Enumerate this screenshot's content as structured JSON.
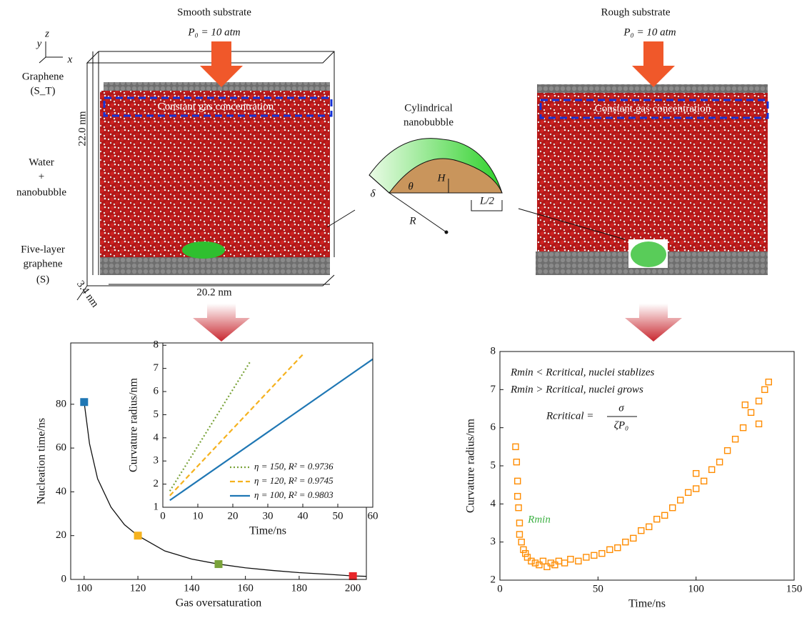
{
  "diagram": {
    "left_title": "Smooth substrate",
    "left_pressure": "P₀ = 10 atm",
    "right_title": "Rough substrate",
    "right_pressure": "P₀ = 10 atm",
    "axis_y": "y",
    "axis_z": "z",
    "axis_x": "x",
    "graphene_top": "Graphene",
    "graphene_top_sub": "(S_T)",
    "water": "Water",
    "plus": "+",
    "nanobubble": "nanobubble",
    "substrate_1": "Five-layer",
    "substrate_2": "graphene",
    "substrate_3": "(S)",
    "height": "22.0 nm",
    "depth": "3.4 nm",
    "width": "20.2 nm",
    "gas_left": "Constant gas concentration",
    "gas_right": "Constant gas concentration",
    "bubble_title_1": "Cylindrical",
    "bubble_title_2": "nanobubble",
    "delta": "δ",
    "theta": "θ",
    "h": "H",
    "r": "R",
    "half_l": "L/2"
  },
  "chart_data": [
    {
      "type": "scatter",
      "xlabel": "Gas oversaturation",
      "ylabel": "Nucleation time/ns",
      "x": [
        100,
        120,
        150,
        200
      ],
      "values": [
        81,
        20,
        7,
        1.5
      ],
      "colors": [
        "#1f77b4",
        "#f5b21f",
        "#7aa33a",
        "#e8262a"
      ],
      "curve": {
        "x": [
          100,
          102,
          105,
          110,
          115,
          120,
          130,
          140,
          150,
          160,
          170,
          180,
          190,
          200,
          205
        ],
        "values": [
          81,
          62,
          46,
          33,
          25,
          20,
          13,
          9.3,
          7,
          5.3,
          4.1,
          3.1,
          2.4,
          1.6,
          1.4
        ]
      },
      "xlim": [
        95,
        205
      ],
      "xticks": [
        100,
        120,
        140,
        160,
        180,
        200
      ],
      "ylim": [
        0,
        108
      ],
      "yticks": [
        0,
        20,
        40,
        60,
        80
      ]
    },
    {
      "type": "line",
      "xlabel": "Time/ns",
      "ylabel": "Curvature radius/nm",
      "series": [
        {
          "name": "η = 150, R² = 0.9736",
          "color": "#7aa33a",
          "dash": "dotted",
          "x": [
            2,
            25
          ],
          "values": [
            1.7,
            7.3
          ]
        },
        {
          "name": "η = 120, R² = 0.9745",
          "color": "#f5b21f",
          "dash": "dashed",
          "x": [
            2,
            40
          ],
          "values": [
            1.5,
            7.6
          ]
        },
        {
          "name": "η = 100, R² = 0.9803",
          "color": "#1f77b4",
          "dash": "solid",
          "x": [
            2,
            60
          ],
          "values": [
            1.3,
            7.4
          ]
        }
      ],
      "legend": "lower right",
      "xlim": [
        0,
        60
      ],
      "xticks": [
        0,
        10,
        20,
        30,
        40,
        50,
        60
      ],
      "ylim": [
        1,
        8.1
      ],
      "yticks": [
        1,
        2,
        3,
        4,
        5,
        6,
        7,
        8
      ]
    },
    {
      "type": "scatter",
      "xlabel": "Time/ns",
      "ylabel": "Curvature radius/nm",
      "color": "#ff8c00",
      "marker": "square",
      "annotation_1": "Rmin < Rcritical, nuclei stablizes",
      "annotation_2": "Rmin > Rcritical, nuclei grows",
      "formula_lhs": "Rcritical =",
      "formula_num": "σ",
      "formula_den": "ζP₀",
      "rmin_label": "Rmin",
      "x": [
        8,
        8.5,
        9,
        9,
        9.5,
        10,
        10,
        11,
        12,
        13,
        14,
        16,
        18,
        20,
        22,
        24,
        26,
        28,
        30,
        33,
        36,
        40,
        44,
        48,
        52,
        56,
        60,
        64,
        68,
        72,
        76,
        80,
        84,
        88,
        92,
        96,
        100,
        104,
        108,
        112,
        116,
        120,
        124,
        128,
        132,
        135,
        137,
        132,
        125,
        100
      ],
      "values": [
        5.5,
        5.1,
        4.6,
        4.2,
        3.9,
        3.5,
        3.2,
        3.0,
        2.8,
        2.7,
        2.6,
        2.5,
        2.45,
        2.4,
        2.5,
        2.35,
        2.45,
        2.4,
        2.5,
        2.45,
        2.55,
        2.5,
        2.6,
        2.65,
        2.7,
        2.8,
        2.85,
        3.0,
        3.1,
        3.3,
        3.4,
        3.6,
        3.7,
        3.9,
        4.1,
        4.3,
        4.4,
        4.6,
        4.9,
        5.1,
        5.4,
        5.7,
        6.0,
        6.4,
        6.7,
        7.0,
        7.2,
        6.1,
        6.6,
        4.8
      ],
      "xlim": [
        0,
        150
      ],
      "xticks": [
        0,
        50,
        100,
        150
      ],
      "ylim": [
        2,
        8
      ],
      "yticks": [
        2,
        3,
        4,
        5,
        6,
        7,
        8
      ]
    }
  ]
}
